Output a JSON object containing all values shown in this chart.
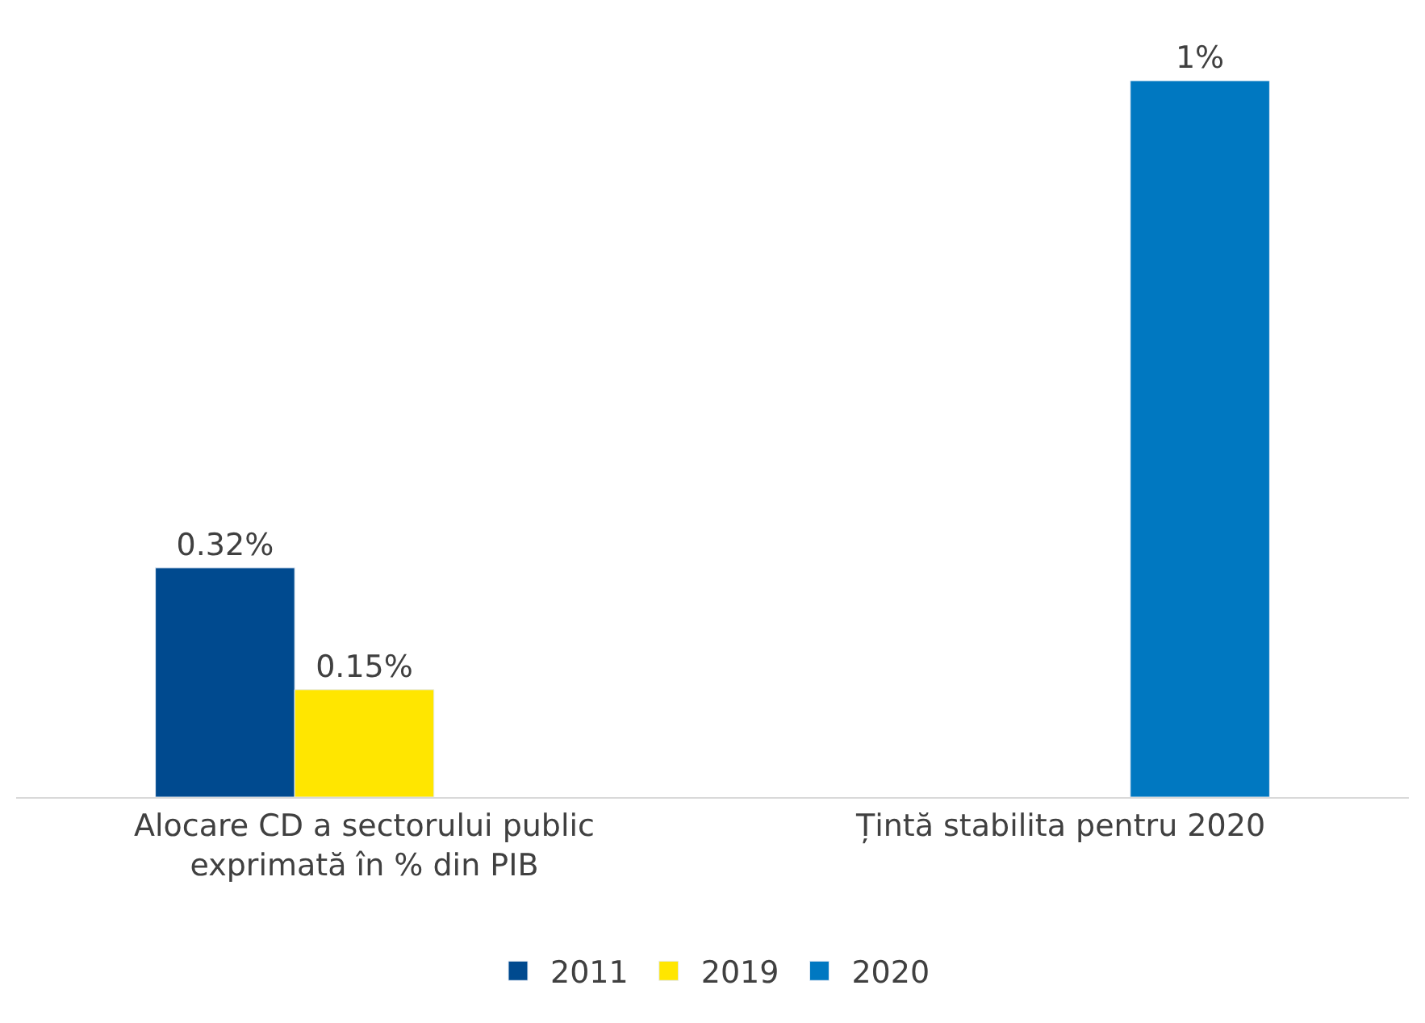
{
  "chart_data": {
    "type": "bar",
    "categories": [
      "Alocare CD a sectorului public\nexprimată în % din PIB",
      "Țintă stabilita pentru 2020"
    ],
    "series": [
      {
        "name": "2011",
        "color": "#004a8f",
        "values": [
          0.32,
          null
        ],
        "value_labels": [
          "0.32%",
          null
        ]
      },
      {
        "name": "2019",
        "color": "#ffe600",
        "values": [
          0.15,
          null
        ],
        "value_labels": [
          "0.15%",
          null
        ]
      },
      {
        "name": "2020",
        "color": "#0078c1",
        "values": [
          null,
          1
        ],
        "value_labels": [
          null,
          "1%"
        ]
      }
    ],
    "legend": "bottom"
  }
}
